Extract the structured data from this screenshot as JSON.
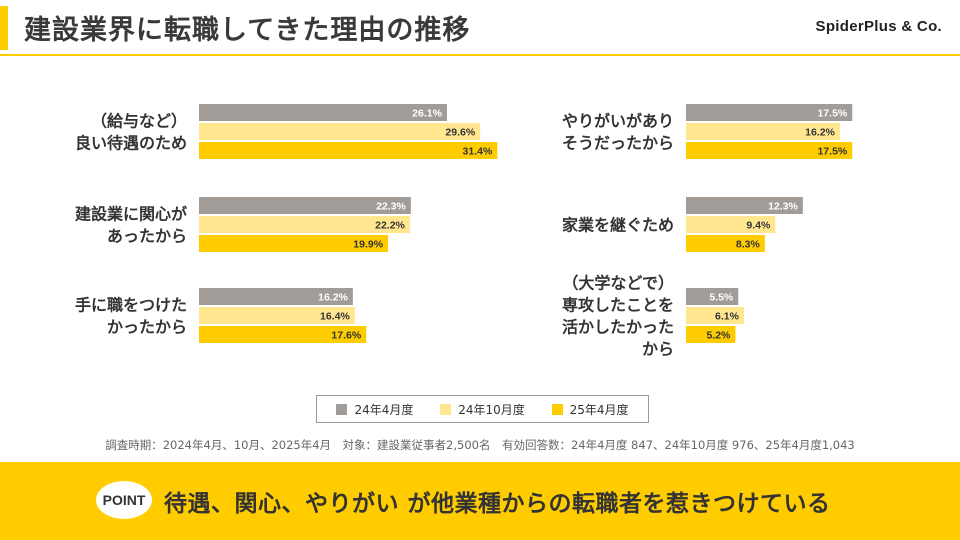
{
  "header": {
    "title": "建設業界に転職してきた理由の推移",
    "brand": "SpiderPlus & Co."
  },
  "colors": {
    "accent": "#FFCC00",
    "series": [
      "#A19C97",
      "#FFE68F",
      "#FFCC00"
    ]
  },
  "chart_data": {
    "type": "bar",
    "orientation": "horizontal",
    "categories": [
      "（給与など）良い待遇のため",
      "建設業に関心があったから",
      "手に職をつけたかったから",
      "やりがいがありそうだったから",
      "家業を継ぐため",
      "（大学などで）専攻したことを活かしたかったから"
    ],
    "category_lines": [
      [
        "（給与など）",
        "良い待遇のため"
      ],
      [
        "建設業に関心が",
        "あったから"
      ],
      [
        "手に職をつけた",
        "かったから"
      ],
      [
        "やりがいがあり",
        "そうだったから"
      ],
      [
        "家業を継ぐため"
      ],
      [
        "（大学などで）",
        "専攻したことを",
        "活かしたかった",
        "から"
      ]
    ],
    "unit": "%",
    "series": [
      {
        "name": "24年4月度",
        "values": [
          26.1,
          22.3,
          16.2,
          17.5,
          12.3,
          5.5
        ]
      },
      {
        "name": "24年10月度",
        "values": [
          29.6,
          22.2,
          16.4,
          16.2,
          9.4,
          6.1
        ]
      },
      {
        "name": "25年4月度",
        "values": [
          31.4,
          19.9,
          17.6,
          17.5,
          8.3,
          5.2
        ]
      }
    ],
    "legend_position": "bottom",
    "grid": false
  },
  "footnote": "調査時期：2024年4月、10月、2025年4月　対象：建設業従事者2,500名　有効回答数：24年4月度 847、24年10月度 976、25年4月度1,043",
  "conclusion": {
    "badge": "POINT",
    "text": "待遇、関心、やりがい が他業種からの転職者を惹きつけている"
  }
}
